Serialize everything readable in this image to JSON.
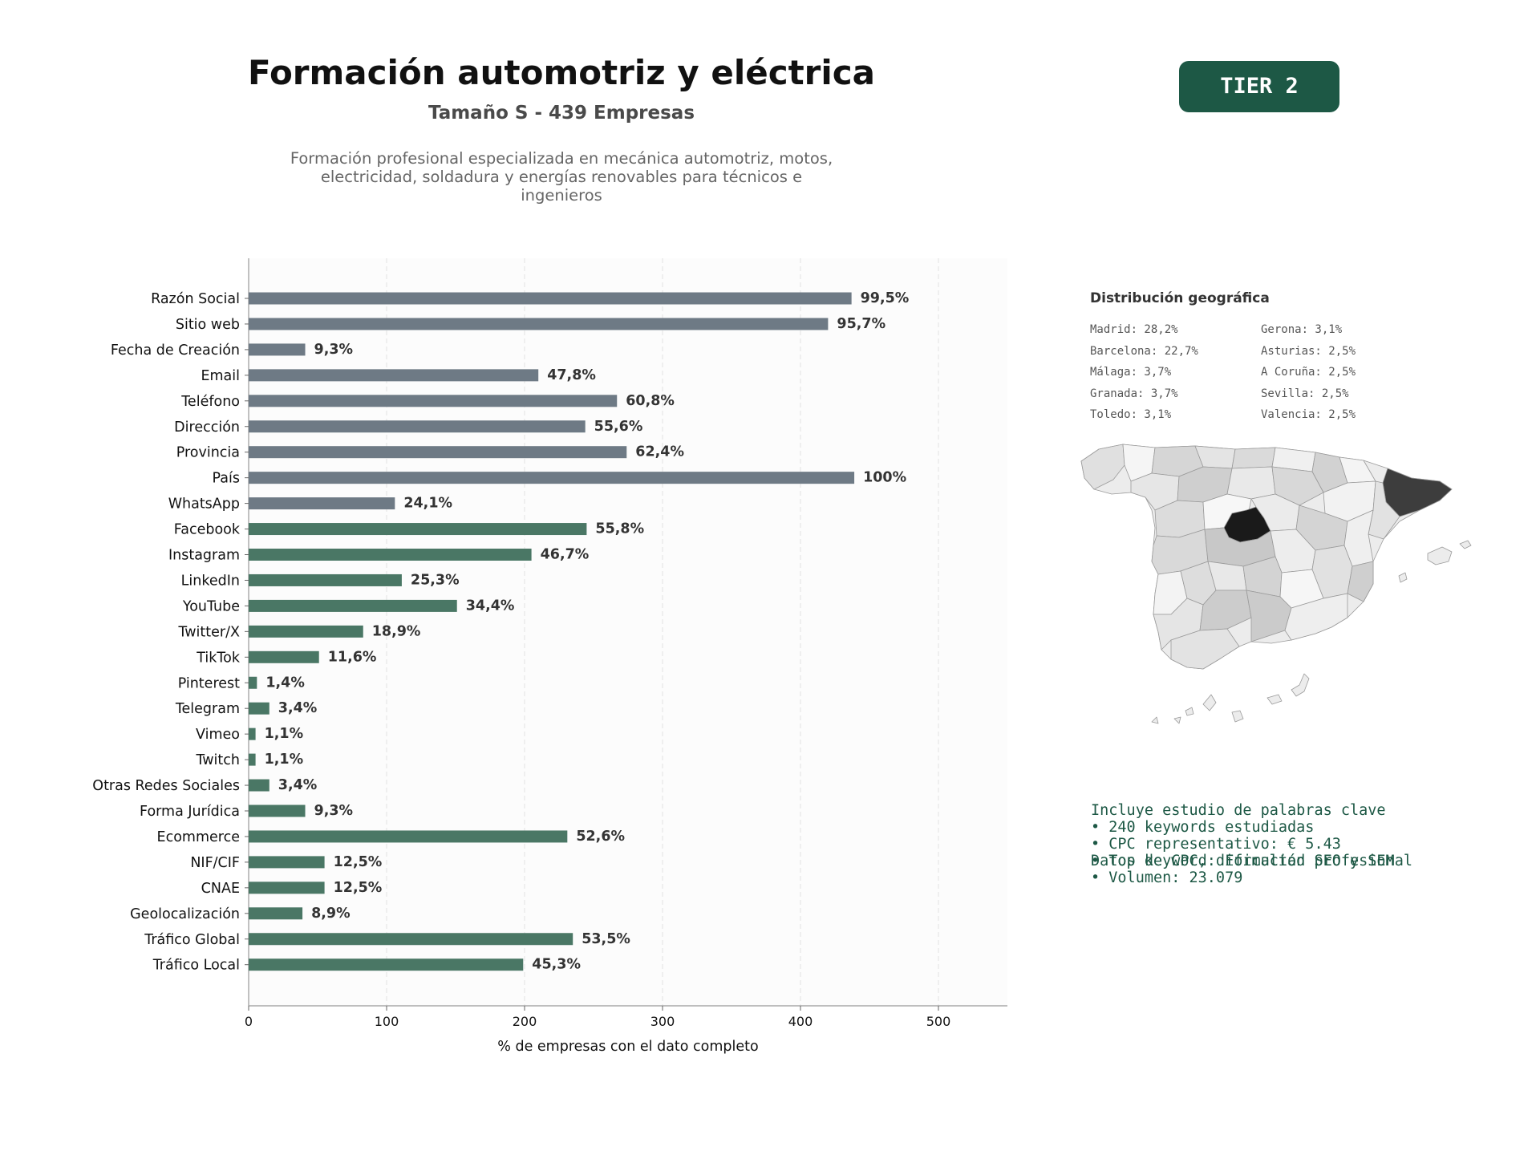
{
  "header": {
    "title": "Formación automotriz y eléctrica",
    "subtitle": "Tamaño S - 439 Empresas",
    "description_lines": [
      "Formación profesional especializada en mecánica automotriz, motos,",
      "electricidad, soldadura y energías renovables para técnicos e",
      "ingenieros"
    ],
    "tier_badge": "TIER 2"
  },
  "colors": {
    "gray_bar": "#6e7a85",
    "green_bar": "#4a7765",
    "accent": "#1d5845",
    "map_dark": "#1a1a1a",
    "map_second": "#3d3d3d"
  },
  "chart_data": {
    "type": "bar",
    "orientation": "horizontal",
    "xlabel": "% de empresas con el dato completo",
    "xlim": [
      0,
      550
    ],
    "xticks": [
      0,
      100,
      200,
      300,
      400,
      500
    ],
    "grid": "vertical dashed",
    "categories": [
      "Razón Social",
      "Sitio web",
      "Fecha de Creación",
      "Email",
      "Teléfono",
      "Dirección",
      "Provincia",
      "País",
      "WhatsApp",
      "Facebook",
      "Instagram",
      "LinkedIn",
      "YouTube",
      "Twitter/X",
      "TikTok",
      "Pinterest",
      "Telegram",
      "Vimeo",
      "Twitch",
      "Otras Redes Sociales",
      "Forma Jurídica",
      "Ecommerce",
      "NIF/CIF",
      "CNAE",
      "Geolocalización",
      "Tráfico Global",
      "Tráfico Local"
    ],
    "values": [
      437,
      420,
      41,
      210,
      267,
      244,
      274,
      439,
      106,
      245,
      205,
      111,
      151,
      83,
      51,
      6,
      15,
      5,
      5,
      15,
      41,
      231,
      55,
      55,
      39,
      235,
      199
    ],
    "labels": [
      "99,5%",
      "95,7%",
      "9,3%",
      "47,8%",
      "60,8%",
      "55,6%",
      "62,4%",
      "100%",
      "24,1%",
      "55,8%",
      "46,7%",
      "25,3%",
      "34,4%",
      "18,9%",
      "11,6%",
      "1,4%",
      "3,4%",
      "1,1%",
      "1,1%",
      "3,4%",
      "9,3%",
      "52,6%",
      "12,5%",
      "12,5%",
      "8,9%",
      "53,5%",
      "45,3%"
    ],
    "groups": [
      "gray",
      "gray",
      "gray",
      "gray",
      "gray",
      "gray",
      "gray",
      "gray",
      "gray",
      "green",
      "green",
      "green",
      "green",
      "green",
      "green",
      "green",
      "green",
      "green",
      "green",
      "green",
      "green",
      "green",
      "green",
      "green",
      "green",
      "green",
      "green"
    ]
  },
  "geo": {
    "title": "Distribución geográfica",
    "items": [
      "Madrid: 28,2%",
      "Gerona: 3,1%",
      "Barcelona: 22,7%",
      "Asturias: 2,5%",
      "Málaga: 3,7%",
      "A Coruña: 2,5%",
      "Granada: 3,7%",
      "Sevilla: 2,5%",
      "Toledo: 3,1%",
      "Valencia: 2,5%"
    ]
  },
  "keywords": {
    "intro_lines": [
      "Incluye estudio de palabras clave",
      "Datos de CPC, dificultad SEO y SEM"
    ],
    "bullets": [
      "• 240 keywords estudiadas",
      "• CPC representativo: € 5.43",
      "• Top keyword: Formación profesional",
      "• Volumen: 23.079"
    ]
  }
}
